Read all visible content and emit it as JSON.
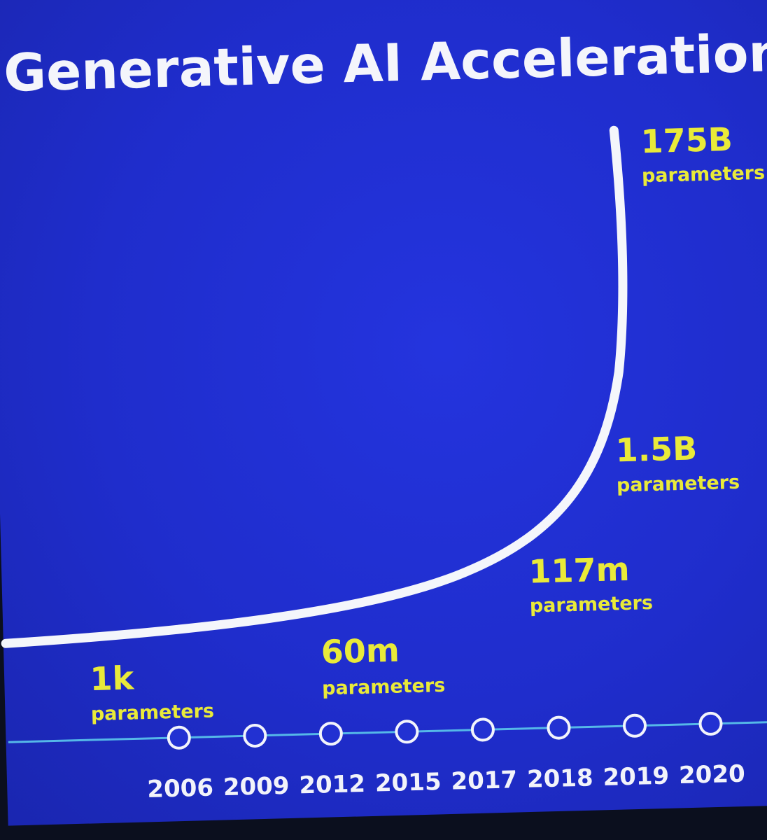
{
  "chart_data": {
    "type": "line",
    "title": "Generative AI Acceleration",
    "xlabel": "",
    "ylabel": "",
    "categories": [
      "2006",
      "2009",
      "2012",
      "2015",
      "2017",
      "2018",
      "2019",
      "2020"
    ],
    "annotations": [
      {
        "year": "2006",
        "value": "1k",
        "unit": "parameters"
      },
      {
        "year": "2012",
        "value": "60m",
        "unit": "parameters"
      },
      {
        "year": "2018",
        "value": "117m",
        "unit": "parameters"
      },
      {
        "year": "2019",
        "value": "1.5B",
        "unit": "parameters"
      },
      {
        "year": "2020",
        "value": "175B",
        "unit": "parameters"
      }
    ],
    "grid": false,
    "legend": "none",
    "colors": {
      "background": "#1f2dcc",
      "curve": "#f4f6fb",
      "timeline": "#55b8e8",
      "labels": "#e9ea39",
      "years": "#f2f3fa",
      "title": "#f4f5fb"
    }
  }
}
